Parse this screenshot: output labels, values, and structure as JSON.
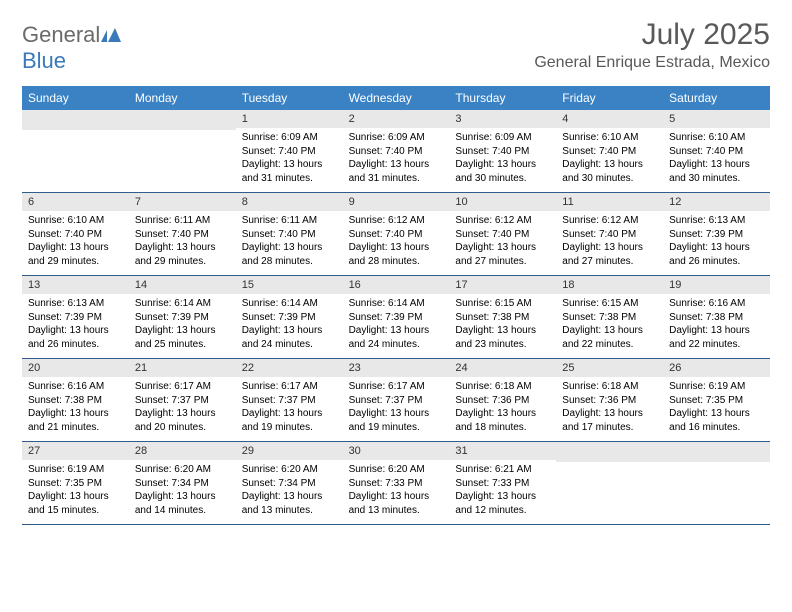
{
  "logo": {
    "general": "General",
    "blue": "Blue"
  },
  "title": "July 2025",
  "location": "General Enrique Estrada, Mexico",
  "header_bg": "#3a82c4",
  "weekdays": [
    "Sunday",
    "Monday",
    "Tuesday",
    "Wednesday",
    "Thursday",
    "Friday",
    "Saturday"
  ],
  "weeks": [
    [
      null,
      null,
      {
        "n": "1",
        "sr": "6:09 AM",
        "ss": "7:40 PM",
        "dh": "13",
        "dm": "31"
      },
      {
        "n": "2",
        "sr": "6:09 AM",
        "ss": "7:40 PM",
        "dh": "13",
        "dm": "31"
      },
      {
        "n": "3",
        "sr": "6:09 AM",
        "ss": "7:40 PM",
        "dh": "13",
        "dm": "30"
      },
      {
        "n": "4",
        "sr": "6:10 AM",
        "ss": "7:40 PM",
        "dh": "13",
        "dm": "30"
      },
      {
        "n": "5",
        "sr": "6:10 AM",
        "ss": "7:40 PM",
        "dh": "13",
        "dm": "30"
      }
    ],
    [
      {
        "n": "6",
        "sr": "6:10 AM",
        "ss": "7:40 PM",
        "dh": "13",
        "dm": "29"
      },
      {
        "n": "7",
        "sr": "6:11 AM",
        "ss": "7:40 PM",
        "dh": "13",
        "dm": "29"
      },
      {
        "n": "8",
        "sr": "6:11 AM",
        "ss": "7:40 PM",
        "dh": "13",
        "dm": "28"
      },
      {
        "n": "9",
        "sr": "6:12 AM",
        "ss": "7:40 PM",
        "dh": "13",
        "dm": "28"
      },
      {
        "n": "10",
        "sr": "6:12 AM",
        "ss": "7:40 PM",
        "dh": "13",
        "dm": "27"
      },
      {
        "n": "11",
        "sr": "6:12 AM",
        "ss": "7:40 PM",
        "dh": "13",
        "dm": "27"
      },
      {
        "n": "12",
        "sr": "6:13 AM",
        "ss": "7:39 PM",
        "dh": "13",
        "dm": "26"
      }
    ],
    [
      {
        "n": "13",
        "sr": "6:13 AM",
        "ss": "7:39 PM",
        "dh": "13",
        "dm": "26"
      },
      {
        "n": "14",
        "sr": "6:14 AM",
        "ss": "7:39 PM",
        "dh": "13",
        "dm": "25"
      },
      {
        "n": "15",
        "sr": "6:14 AM",
        "ss": "7:39 PM",
        "dh": "13",
        "dm": "24"
      },
      {
        "n": "16",
        "sr": "6:14 AM",
        "ss": "7:39 PM",
        "dh": "13",
        "dm": "24"
      },
      {
        "n": "17",
        "sr": "6:15 AM",
        "ss": "7:38 PM",
        "dh": "13",
        "dm": "23"
      },
      {
        "n": "18",
        "sr": "6:15 AM",
        "ss": "7:38 PM",
        "dh": "13",
        "dm": "22"
      },
      {
        "n": "19",
        "sr": "6:16 AM",
        "ss": "7:38 PM",
        "dh": "13",
        "dm": "22"
      }
    ],
    [
      {
        "n": "20",
        "sr": "6:16 AM",
        "ss": "7:38 PM",
        "dh": "13",
        "dm": "21"
      },
      {
        "n": "21",
        "sr": "6:17 AM",
        "ss": "7:37 PM",
        "dh": "13",
        "dm": "20"
      },
      {
        "n": "22",
        "sr": "6:17 AM",
        "ss": "7:37 PM",
        "dh": "13",
        "dm": "19"
      },
      {
        "n": "23",
        "sr": "6:17 AM",
        "ss": "7:37 PM",
        "dh": "13",
        "dm": "19"
      },
      {
        "n": "24",
        "sr": "6:18 AM",
        "ss": "7:36 PM",
        "dh": "13",
        "dm": "18"
      },
      {
        "n": "25",
        "sr": "6:18 AM",
        "ss": "7:36 PM",
        "dh": "13",
        "dm": "17"
      },
      {
        "n": "26",
        "sr": "6:19 AM",
        "ss": "7:35 PM",
        "dh": "13",
        "dm": "16"
      }
    ],
    [
      {
        "n": "27",
        "sr": "6:19 AM",
        "ss": "7:35 PM",
        "dh": "13",
        "dm": "15"
      },
      {
        "n": "28",
        "sr": "6:20 AM",
        "ss": "7:34 PM",
        "dh": "13",
        "dm": "14"
      },
      {
        "n": "29",
        "sr": "6:20 AM",
        "ss": "7:34 PM",
        "dh": "13",
        "dm": "13"
      },
      {
        "n": "30",
        "sr": "6:20 AM",
        "ss": "7:33 PM",
        "dh": "13",
        "dm": "13"
      },
      {
        "n": "31",
        "sr": "6:21 AM",
        "ss": "7:33 PM",
        "dh": "13",
        "dm": "12"
      },
      null,
      null
    ]
  ],
  "labels": {
    "sunrise": "Sunrise: ",
    "sunset": "Sunset: ",
    "daylight_pre": "Daylight: ",
    "hours": " hours and ",
    "minutes": " minutes."
  }
}
